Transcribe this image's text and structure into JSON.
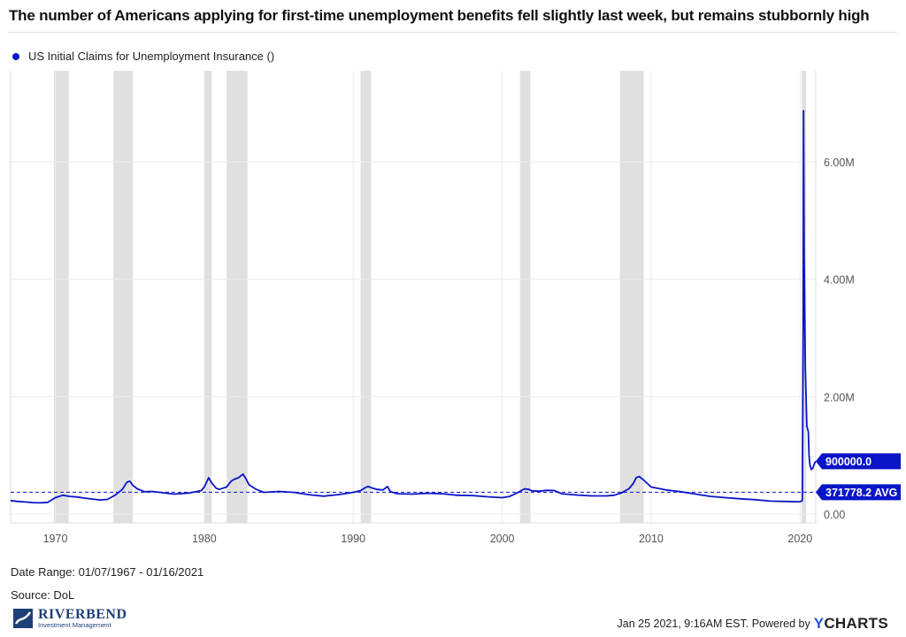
{
  "header": {
    "title": "The number of Americans applying for first-time unemployment benefits fell slightly last week, but remains stubbornly high"
  },
  "legend": {
    "series_name": "US Initial Claims for Unemployment Insurance ()"
  },
  "footer": {
    "date_range": "Date Range: 01/07/1967 - 01/16/2021",
    "source": "Source: DoL",
    "timestamp": "Jan 25 2021, 9:16AM EST. Powered by",
    "powered_brand": {
      "y": "Y",
      "rest": "CHARTS"
    },
    "logo": {
      "word": "RIVERBEND",
      "sub": "Investment Management"
    }
  },
  "colors": {
    "series": "#0a14c8",
    "recession": "#e0e0e0",
    "grid": "#ececec",
    "axis_text": "#555555",
    "logo": "#1d3f7a",
    "brand_y": "#1f56d8"
  },
  "chart_data": {
    "type": "line",
    "title": "The number of Americans applying for first-time unemployment benefits fell slightly last week, but remains stubbornly high",
    "series": [
      {
        "name": "US Initial Claims for Unemployment Insurance ()",
        "x": [
          1967.0,
          1967.5,
          1968.0,
          1968.5,
          1969.0,
          1969.5,
          1970.0,
          1970.5,
          1971.0,
          1971.5,
          1972.0,
          1972.5,
          1973.0,
          1973.5,
          1974.0,
          1974.5,
          1974.8,
          1975.0,
          1975.2,
          1975.5,
          1976.0,
          1976.5,
          1977.0,
          1978.0,
          1979.0,
          1979.8,
          1980.0,
          1980.3,
          1980.5,
          1980.8,
          1981.0,
          1981.5,
          1981.8,
          1982.0,
          1982.3,
          1982.6,
          1982.8,
          1983.0,
          1983.5,
          1984.0,
          1985.0,
          1986.0,
          1987.0,
          1988.0,
          1989.0,
          1990.0,
          1990.5,
          1990.8,
          1991.0,
          1991.3,
          1991.6,
          1992.0,
          1992.3,
          1992.5,
          1992.8,
          1993.0,
          1994.0,
          1995.0,
          1996.0,
          1997.0,
          1998.0,
          1999.0,
          2000.0,
          2000.5,
          2001.0,
          2001.5,
          2001.8,
          2002.0,
          2002.5,
          2003.0,
          2003.5,
          2004.0,
          2005.0,
          2006.0,
          2007.0,
          2007.5,
          2008.0,
          2008.5,
          2008.8,
          2009.0,
          2009.2,
          2009.5,
          2010.0,
          2011.0,
          2012.0,
          2013.0,
          2014.0,
          2015.0,
          2016.0,
          2017.0,
          2018.0,
          2019.0,
          2020.0,
          2020.15,
          2020.21,
          2020.23,
          2020.27,
          2020.35,
          2020.45,
          2020.55,
          2020.6,
          2020.65,
          2020.75,
          2020.85,
          2020.95,
          2021.04
        ],
        "values": [
          230000,
          215000,
          205000,
          195000,
          190000,
          200000,
          280000,
          320000,
          300000,
          290000,
          270000,
          255000,
          240000,
          250000,
          320000,
          420000,
          540000,
          560000,
          490000,
          430000,
          380000,
          385000,
          370000,
          340000,
          360000,
          400000,
          460000,
          620000,
          530000,
          440000,
          420000,
          460000,
          560000,
          590000,
          620000,
          680000,
          600000,
          500000,
          420000,
          370000,
          385000,
          370000,
          330000,
          305000,
          330000,
          370000,
          400000,
          450000,
          470000,
          440000,
          420000,
          410000,
          470000,
          380000,
          360000,
          345000,
          340000,
          355000,
          345000,
          320000,
          315000,
          295000,
          280000,
          300000,
          360000,
          430000,
          420000,
          395000,
          390000,
          405000,
          400000,
          345000,
          325000,
          310000,
          310000,
          320000,
          360000,
          430000,
          520000,
          620000,
          640000,
          580000,
          460000,
          410000,
          380000,
          340000,
          300000,
          280000,
          260000,
          245000,
          220000,
          215000,
          210000,
          230000,
          3300000,
          6870000,
          4400000,
          2500000,
          1500000,
          1400000,
          1000000,
          850000,
          760000,
          780000,
          850000,
          900000
        ]
      }
    ],
    "reference_line": {
      "value": 371778.2,
      "label": "371778.2 AVG"
    },
    "last_value_label": "900000.0",
    "recessions": [
      [
        1969.9,
        1970.9
      ],
      [
        1973.9,
        1975.2
      ],
      [
        1980.0,
        1980.5
      ],
      [
        1981.5,
        1982.9
      ],
      [
        1990.5,
        1991.2
      ],
      [
        2001.2,
        2001.9
      ],
      [
        2007.9,
        2009.5
      ],
      [
        2020.1,
        2020.4
      ]
    ],
    "xlim": [
      1967.0,
      2021.05
    ],
    "ylim": [
      -150000,
      7550000
    ],
    "x_ticks": [
      1970,
      1980,
      1990,
      2000,
      2010,
      2020
    ],
    "x_tick_labels": [
      "1970",
      "1980",
      "1990",
      "2000",
      "2010",
      "2020"
    ],
    "y_ticks": [
      0,
      2000000,
      4000000,
      6000000
    ],
    "y_tick_labels": [
      "0.00",
      "2.00M",
      "4.00M",
      "6.00M"
    ],
    "grid": true,
    "legend_position": "top-left"
  }
}
